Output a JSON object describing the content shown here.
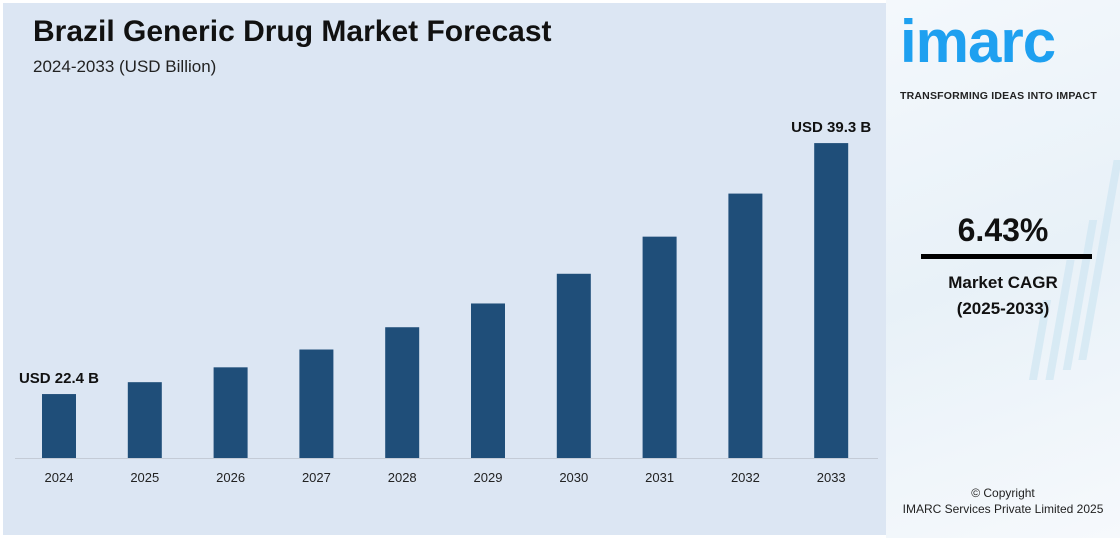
{
  "chart_data": {
    "type": "bar",
    "title": "Brazil Generic Drug Market Forecast",
    "subtitle": "2024-2033 (USD Billion)",
    "categories": [
      "2024",
      "2025",
      "2026",
      "2027",
      "2028",
      "2029",
      "2030",
      "2031",
      "2032",
      "2033"
    ],
    "values": [
      22.4,
      23.2,
      24.2,
      25.4,
      26.9,
      28.5,
      30.5,
      33.0,
      35.9,
      39.3
    ],
    "data_labels": {
      "first": "USD 22.4 B",
      "last": "USD 39.3 B"
    },
    "bar_color": "#1f4e79",
    "grid": false,
    "xlabel": "",
    "ylabel": ""
  },
  "side": {
    "logo": "imarc",
    "tagline": "TRANSFORMING IDEAS INTO IMPACT",
    "cagr_value": "6.43%",
    "cagr_label": "Market CAGR",
    "cagr_period": "(2025-2033)",
    "copyright": "© Copyright",
    "company": "IMARC Services Private Limited 2025",
    "logo_color": "#1ea0f0"
  }
}
